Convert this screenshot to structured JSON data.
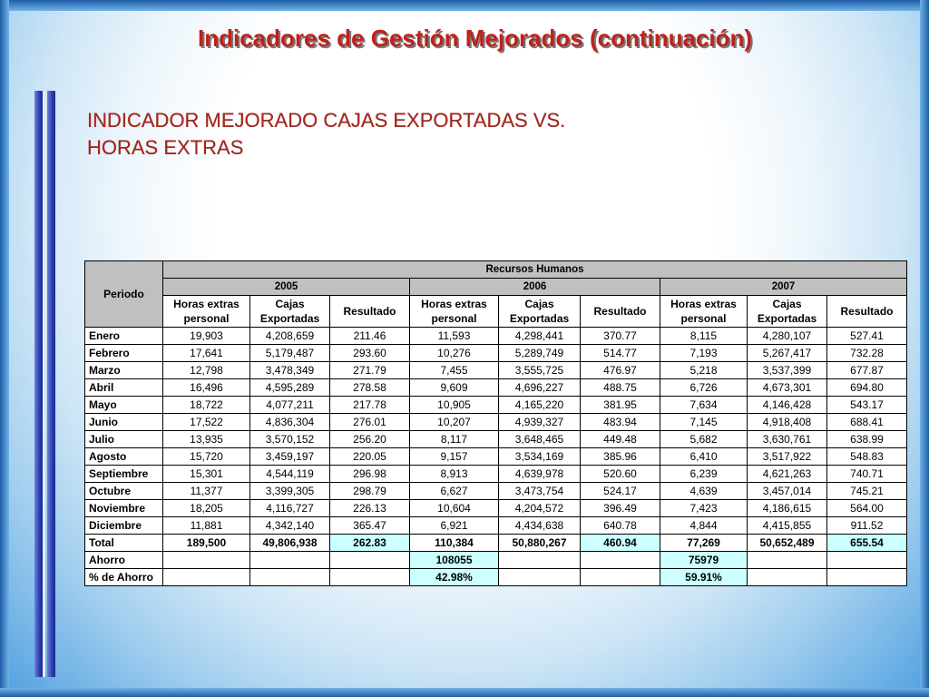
{
  "slide": {
    "title": "Indicadores de Gestión Mejorados (continuación)",
    "subtitle_line1": "INDICADOR MEJORADO CAJAS EXPORTADAS VS.",
    "subtitle_line2": "HORAS EXTRAS",
    "colors": {
      "title": "#c0211b",
      "subtitle": "#a3291f",
      "header_bg": "#c0c0c0",
      "highlight_bg": "#ccffff"
    }
  },
  "table": {
    "periodo_label": "Periodo",
    "group_label": "Recursos Humanos",
    "years": [
      "2005",
      "2006",
      "2007"
    ],
    "col_headers": [
      {
        "line1": "Horas extras",
        "line2": "personal"
      },
      {
        "line1": "Cajas",
        "line2": "Exportadas"
      },
      {
        "line1": "Resultado",
        "line2": ""
      }
    ],
    "rows": [
      {
        "label": "Enero",
        "cells": [
          "19,903",
          "4,208,659",
          "211.46",
          "11,593",
          "4,298,441",
          "370.77",
          "8,115",
          "4,280,107",
          "527.41"
        ]
      },
      {
        "label": "Febrero",
        "cells": [
          "17,641",
          "5,179,487",
          "293.60",
          "10,276",
          "5,289,749",
          "514.77",
          "7,193",
          "5,267,417",
          "732.28"
        ]
      },
      {
        "label": "Marzo",
        "cells": [
          "12,798",
          "3,478,349",
          "271.79",
          "7,455",
          "3,555,725",
          "476.97",
          "5,218",
          "3,537,399",
          "677.87"
        ]
      },
      {
        "label": "Abril",
        "cells": [
          "16,496",
          "4,595,289",
          "278.58",
          "9,609",
          "4,696,227",
          "488.75",
          "6,726",
          "4,673,301",
          "694.80"
        ]
      },
      {
        "label": "Mayo",
        "cells": [
          "18,722",
          "4,077,211",
          "217.78",
          "10,905",
          "4,165,220",
          "381.95",
          "7,634",
          "4,146,428",
          "543.17"
        ]
      },
      {
        "label": "Junio",
        "cells": [
          "17,522",
          "4,836,304",
          "276.01",
          "10,207",
          "4,939,327",
          "483.94",
          "7,145",
          "4,918,408",
          "688.41"
        ]
      },
      {
        "label": "Julio",
        "cells": [
          "13,935",
          "3,570,152",
          "256.20",
          "8,117",
          "3,648,465",
          "449.48",
          "5,682",
          "3,630,761",
          "638.99"
        ]
      },
      {
        "label": "Agosto",
        "cells": [
          "15,720",
          "3,459,197",
          "220.05",
          "9,157",
          "3,534,169",
          "385.96",
          "6,410",
          "3,517,922",
          "548.83"
        ]
      },
      {
        "label": "Septiembre",
        "cells": [
          "15,301",
          "4,544,119",
          "296.98",
          "8,913",
          "4,639,978",
          "520.60",
          "6,239",
          "4,621,263",
          "740.71"
        ]
      },
      {
        "label": "Octubre",
        "cells": [
          "11,377",
          "3,399,305",
          "298.79",
          "6,627",
          "3,473,754",
          "524.17",
          "4,639",
          "3,457,014",
          "745.21"
        ]
      },
      {
        "label": "Noviembre",
        "cells": [
          "18,205",
          "4,116,727",
          "226.13",
          "10,604",
          "4,204,572",
          "396.49",
          "7,423",
          "4,186,615",
          "564.00"
        ]
      },
      {
        "label": "Diciembre",
        "cells": [
          "11,881",
          "4,342,140",
          "365.47",
          "6,921",
          "4,434,638",
          "640.78",
          "4,844",
          "4,415,855",
          "911.52"
        ]
      }
    ],
    "total": {
      "label": "Total",
      "cells": [
        "189,500",
        "49,806,938",
        "262.83",
        "110,384",
        "50,880,267",
        "460.94",
        "77,269",
        "50,652,489",
        "655.54"
      ]
    },
    "ahorro": {
      "label": "Ahorro",
      "v2006": "108055",
      "v2007": "75979"
    },
    "pct_ahorro": {
      "label": "% de Ahorro",
      "v2006": "42.98%",
      "v2007": "59.91%"
    }
  }
}
